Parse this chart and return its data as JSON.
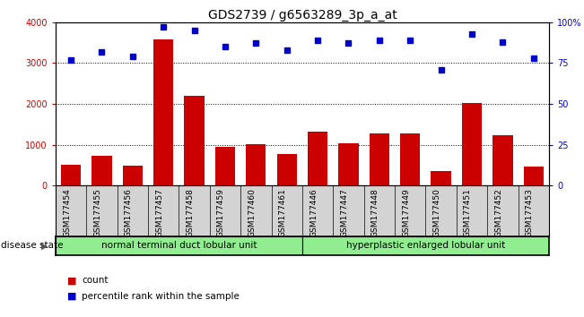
{
  "title": "GDS2739 / g6563289_3p_a_at",
  "categories": [
    "GSM177454",
    "GSM177455",
    "GSM177456",
    "GSM177457",
    "GSM177458",
    "GSM177459",
    "GSM177460",
    "GSM177461",
    "GSM177446",
    "GSM177447",
    "GSM177448",
    "GSM177449",
    "GSM177450",
    "GSM177451",
    "GSM177452",
    "GSM177453"
  ],
  "bar_values": [
    500,
    720,
    490,
    3580,
    2200,
    940,
    1020,
    770,
    1320,
    1040,
    1270,
    1270,
    360,
    2010,
    1230,
    460
  ],
  "dot_values": [
    77,
    82,
    79,
    97,
    95,
    85,
    87,
    83,
    89,
    87,
    89,
    89,
    71,
    93,
    88,
    78
  ],
  "bar_color": "#cc0000",
  "dot_color": "#0000cc",
  "ylim_left": [
    0,
    4000
  ],
  "ylim_right": [
    0,
    100
  ],
  "yticks_left": [
    0,
    1000,
    2000,
    3000,
    4000
  ],
  "yticks_right": [
    0,
    25,
    50,
    75,
    100
  ],
  "yticklabels_right": [
    "0",
    "25",
    "50",
    "75",
    "100%"
  ],
  "grid_values": [
    1000,
    2000,
    3000
  ],
  "group1_label": "normal terminal duct lobular unit",
  "group2_label": "hyperplastic enlarged lobular unit",
  "group1_count": 8,
  "group2_count": 8,
  "disease_state_label": "disease state",
  "legend_bar_label": "count",
  "legend_dot_label": "percentile rank within the sample",
  "group1_color": "#90EE90",
  "group2_color": "#90EE90",
  "bg_color": "#d3d3d3",
  "title_fontsize": 10,
  "tick_fontsize": 7,
  "label_fontsize": 8
}
